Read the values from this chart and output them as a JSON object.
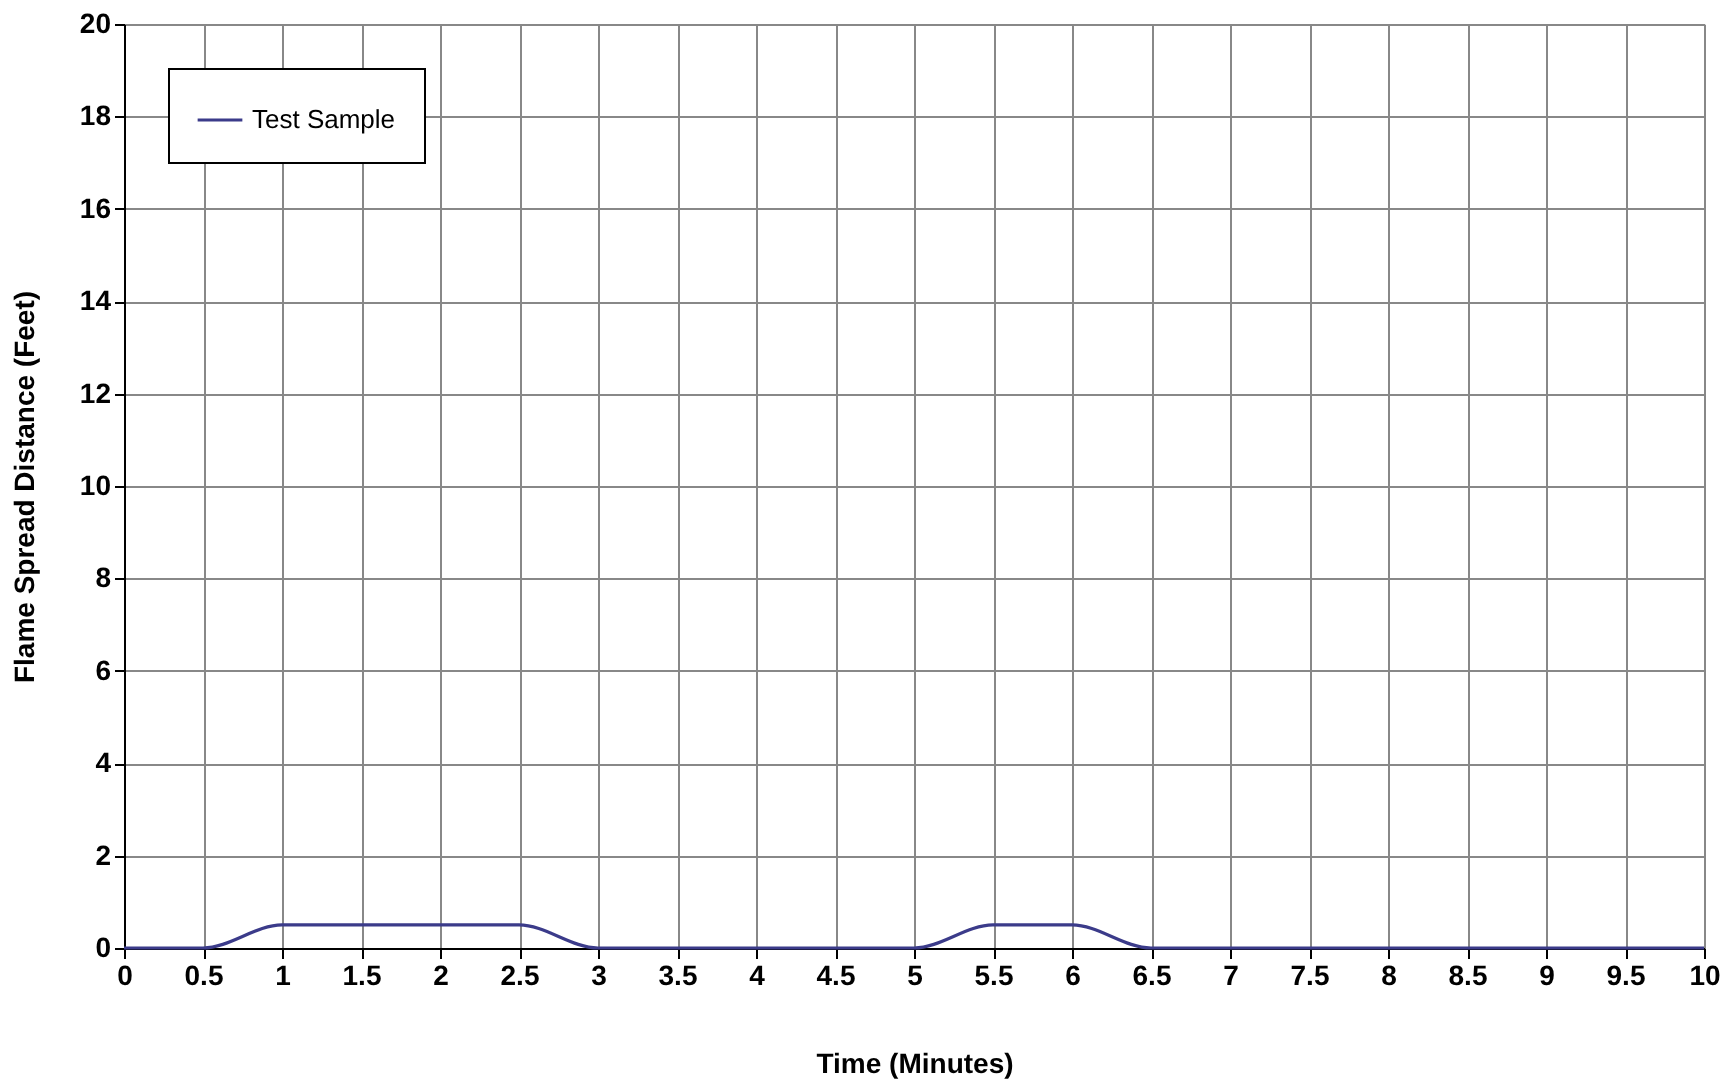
{
  "chart_data": {
    "type": "line",
    "xlabel": "Time (Minutes)",
    "ylabel": "Flame Spread Distance (Feet)",
    "x": [
      0,
      0.5,
      1,
      1.5,
      2,
      2.5,
      3,
      3.5,
      4,
      4.5,
      5,
      5.5,
      6,
      6.5,
      7,
      7.5,
      8,
      8.5,
      9,
      9.5,
      10
    ],
    "series": [
      {
        "name": "Test Sample",
        "color": "#3b3b8a",
        "values": [
          0,
          0,
          0.5,
          0.5,
          0.5,
          0.5,
          0,
          0,
          0,
          0,
          0,
          0.5,
          0.5,
          0,
          0,
          0,
          0,
          0,
          0,
          0,
          0
        ]
      }
    ],
    "xlim": [
      0,
      10
    ],
    "xticks": [
      0,
      0.5,
      1,
      1.5,
      2,
      2.5,
      3,
      3.5,
      4,
      4.5,
      5,
      5.5,
      6,
      6.5,
      7,
      7.5,
      8,
      8.5,
      9,
      9.5,
      10
    ],
    "ylim": [
      0,
      20
    ],
    "yticks": [
      0,
      2,
      4,
      6,
      8,
      10,
      12,
      14,
      16,
      18,
      20
    ],
    "grid": true,
    "legend": "top left",
    "marker": "none",
    "line_style": "solid"
  }
}
